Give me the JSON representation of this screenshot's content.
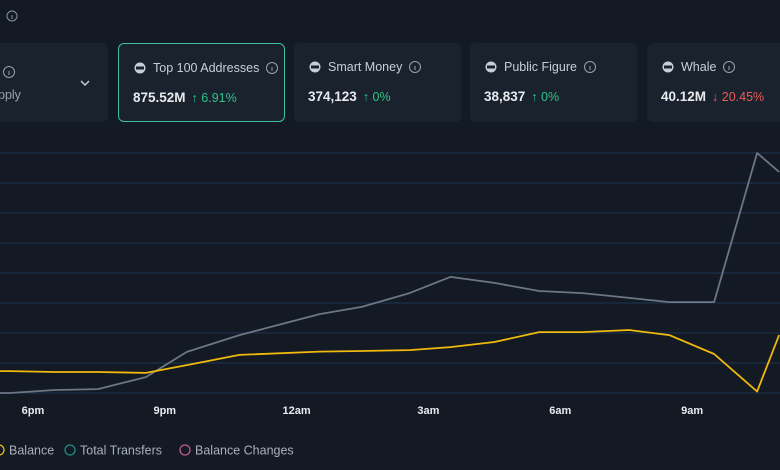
{
  "cards": [
    {
      "title": "pply"
    },
    {
      "title": "Top 100 Addresses",
      "value": "875.52M",
      "change": "↑ 6.91%",
      "direction": "up"
    },
    {
      "title": "Smart Money",
      "value": "374,123",
      "change": "↑ 0%",
      "direction": "up"
    },
    {
      "title": "Public Figure",
      "value": "38,837",
      "change": "↑ 0%",
      "direction": "up"
    },
    {
      "title": "Whale",
      "value": "40.12M",
      "change": "↓ 20.45%",
      "direction": "down"
    }
  ],
  "chart_data": {
    "type": "line",
    "x": [
      17.25,
      17.48,
      18.5,
      19.48,
      20.57,
      21.5,
      22.7,
      24.52,
      25.48,
      26.57,
      27.5,
      28.5,
      29.52,
      30.5,
      31.57,
      32.48,
      33.5,
      34.48,
      34.98
    ],
    "xlim": [
      17.25,
      35
    ],
    "xticks": [
      {
        "value": 18,
        "label": "6pm"
      },
      {
        "value": 21,
        "label": "9pm"
      },
      {
        "value": 24,
        "label": "12am"
      },
      {
        "value": 27,
        "label": "3am"
      },
      {
        "value": 30,
        "label": "6am"
      },
      {
        "value": 33,
        "label": "9am"
      }
    ],
    "ylim": [
      0,
      8
    ],
    "yticks": [
      0,
      1,
      2,
      3,
      4,
      5,
      6,
      7,
      8
    ],
    "grid": true,
    "series": [
      {
        "color": "#6c7684",
        "values": [
          0,
          0,
          0.1,
          0.13,
          0.53,
          1.37,
          1.93,
          2.63,
          2.87,
          3.33,
          3.87,
          3.67,
          3.4,
          3.33,
          3.17,
          3.03,
          3.03,
          8,
          7.37
        ]
      },
      {
        "color": "#f0b90b",
        "values": [
          0.73,
          0.73,
          0.7,
          0.7,
          0.67,
          0.93,
          1.27,
          1.38,
          1.4,
          1.43,
          1.53,
          1.7,
          2.03,
          2.03,
          2.1,
          1.93,
          1.3,
          0.05,
          1.93
        ]
      }
    ],
    "legend": [
      {
        "name": "Balance",
        "color": "#f0b90b"
      },
      {
        "name": "Total Transfers",
        "color": "#1f8a84"
      },
      {
        "name": "Balance Changes",
        "color": "#c45a8a"
      }
    ]
  }
}
